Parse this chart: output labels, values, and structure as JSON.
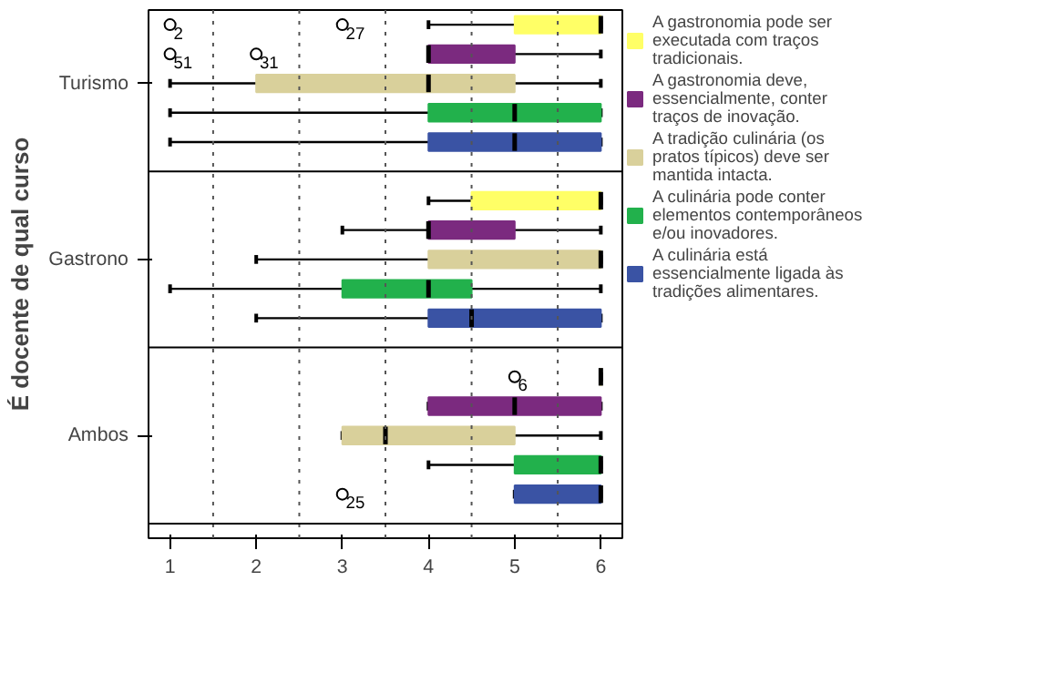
{
  "chart_data": {
    "type": "box",
    "orientation": "horizontal",
    "ylabel": "É docente de qual curso",
    "categories": [
      "Turismo",
      "Gastrono",
      "Ambos"
    ],
    "xlim": [
      0.75,
      6.25
    ],
    "xticks": [
      1,
      2,
      3,
      4,
      5,
      6
    ],
    "legend": "right",
    "ref_lines": [
      {
        "axis": "x",
        "value": 1.5,
        "line_style": "dotted"
      },
      {
        "axis": "x",
        "value": 2.5,
        "line_style": "dotted"
      },
      {
        "axis": "x",
        "value": 3.5,
        "line_style": "dotted"
      },
      {
        "axis": "x",
        "value": 4.5,
        "line_style": "dotted"
      },
      {
        "axis": "x",
        "value": 5.5,
        "line_style": "dotted"
      }
    ],
    "series": [
      {
        "name": "A culinária está essencialmente ligada às tradições alimentares.",
        "color": "#3a53a4",
        "boxes": [
          {
            "low": 1,
            "q1": 4,
            "median": 5,
            "q3": 6,
            "high": 6
          },
          {
            "low": 2,
            "q1": 4,
            "median": 4.5,
            "q3": 6,
            "high": 6
          },
          {
            "low": 5,
            "q1": 5,
            "median": 6,
            "q3": 6,
            "high": 6,
            "outliers": [
              3
            ]
          }
        ]
      },
      {
        "name": "A culinária pode conter elementos contemporâneos e/ou inovadores.",
        "color": "#22b14c",
        "boxes": [
          {
            "low": 1,
            "q1": 4,
            "median": 5,
            "q3": 6,
            "high": 6
          },
          {
            "low": 1,
            "q1": 3,
            "median": 4,
            "q3": 4.5,
            "high": 6
          },
          {
            "low": 4,
            "q1": 5,
            "median": 6,
            "q3": 6,
            "high": 6
          }
        ]
      },
      {
        "name": "A tradição culinária (os pratos típicos) deve ser mantida intacta.",
        "color": "#d9d09b",
        "boxes": [
          {
            "low": 1,
            "q1": 2,
            "median": 4,
            "q3": 5,
            "high": 6
          },
          {
            "low": 2,
            "q1": 4,
            "median": 6,
            "q3": 6,
            "high": 6
          },
          {
            "low": 3,
            "q1": 3,
            "median": 3.5,
            "q3": 5,
            "high": 6
          }
        ]
      },
      {
        "name": "A gastronomia deve, essencialmente, conter traços de inovação.",
        "color": "#7b2a7f",
        "boxes": [
          {
            "low": 4,
            "q1": 4,
            "median": 4,
            "q3": 5,
            "high": 6,
            "outliers": [
              1,
              2
            ]
          },
          {
            "low": 3,
            "q1": 4,
            "median": 4,
            "q3": 5,
            "high": 6
          },
          {
            "low": 4,
            "q1": 4,
            "median": 5,
            "q3": 6,
            "high": 6
          }
        ]
      },
      {
        "name": "A gastronomia pode ser executada com traços tradicionais.",
        "color": "#ffff66",
        "boxes": [
          {
            "low": 4,
            "q1": 5,
            "median": 6,
            "q3": 6,
            "high": 6,
            "outliers": [
              1,
              3
            ]
          },
          {
            "low": 4,
            "q1": 4.5,
            "median": 6,
            "q3": 6,
            "high": 6
          },
          {
            "low": 6,
            "q1": 6,
            "median": 6,
            "q3": 6,
            "high": 6,
            "outliers": [
              5
            ]
          }
        ]
      }
    ],
    "annotations": [
      "25",
      "51",
      "31",
      "2",
      "27",
      "6"
    ]
  }
}
